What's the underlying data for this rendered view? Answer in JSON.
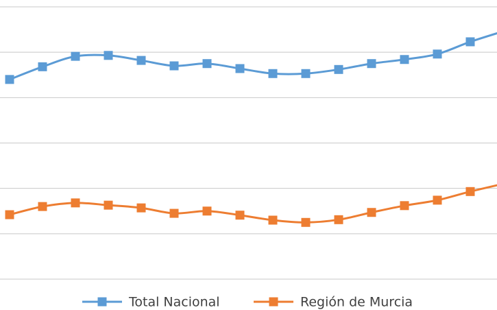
{
  "chart_data": {
    "type": "line",
    "categories": [
      null,
      null,
      null,
      null,
      null,
      null,
      null,
      null,
      null,
      null,
      null,
      null,
      null,
      null,
      null,
      null
    ],
    "series": [
      {
        "name": "Total Nacional",
        "color": "#5b9bd5",
        "values": [
          4.4,
          4.68,
          4.91,
          4.93,
          4.82,
          4.7,
          4.75,
          4.64,
          4.53,
          4.53,
          4.62,
          4.75,
          4.84,
          4.96,
          5.23,
          5.46
        ]
      },
      {
        "name": "Región de Murcia",
        "color": "#ed7d31",
        "values": [
          1.42,
          1.6,
          1.68,
          1.63,
          1.57,
          1.45,
          1.5,
          1.41,
          1.3,
          1.25,
          1.31,
          1.47,
          1.62,
          1.74,
          1.93,
          2.1
        ]
      }
    ],
    "ylim": [
      0,
      6
    ],
    "yticks": [
      0,
      1,
      2,
      3,
      4,
      5,
      6
    ],
    "grid": true,
    "smooth": true,
    "legend": "bottom"
  }
}
